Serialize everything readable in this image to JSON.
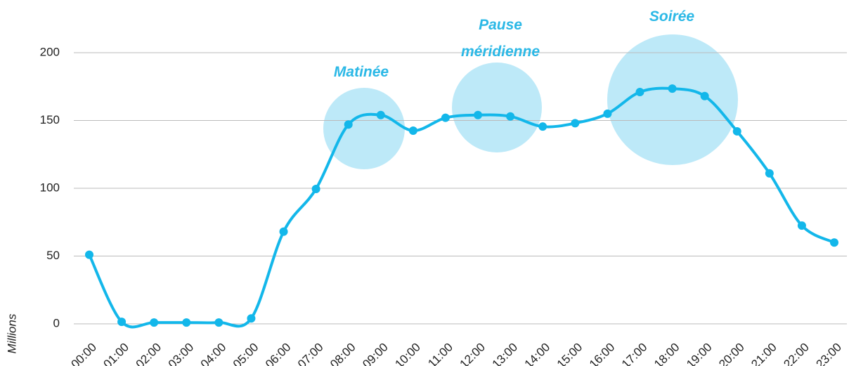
{
  "chart_data": {
    "type": "line",
    "y_label": "Millions",
    "categories": [
      "00:00",
      "01:00",
      "02:00",
      "03:00",
      "04:00",
      "05:00",
      "06:00",
      "07:00",
      "08:00",
      "09:00",
      "10:00",
      "11:00",
      "12:00",
      "13:00",
      "14:00",
      "15:00",
      "16:00",
      "17:00",
      "18:00",
      "19:00",
      "20:00",
      "21:00",
      "22:00",
      "23:00"
    ],
    "values": [
      51,
      1.5,
      1,
      1,
      1,
      4,
      68,
      99.5,
      147,
      154,
      142.5,
      152,
      154,
      153,
      145.5,
      148,
      155,
      171,
      173.5,
      168,
      142,
      111,
      72.5,
      60
    ],
    "color": "#13b7ea",
    "ylim": [
      0,
      200
    ],
    "yticks": [
      0,
      50,
      100,
      150,
      200
    ],
    "grid": true,
    "annotations": [
      "Matinée",
      "Pause méridienne",
      "Soirée"
    ]
  }
}
